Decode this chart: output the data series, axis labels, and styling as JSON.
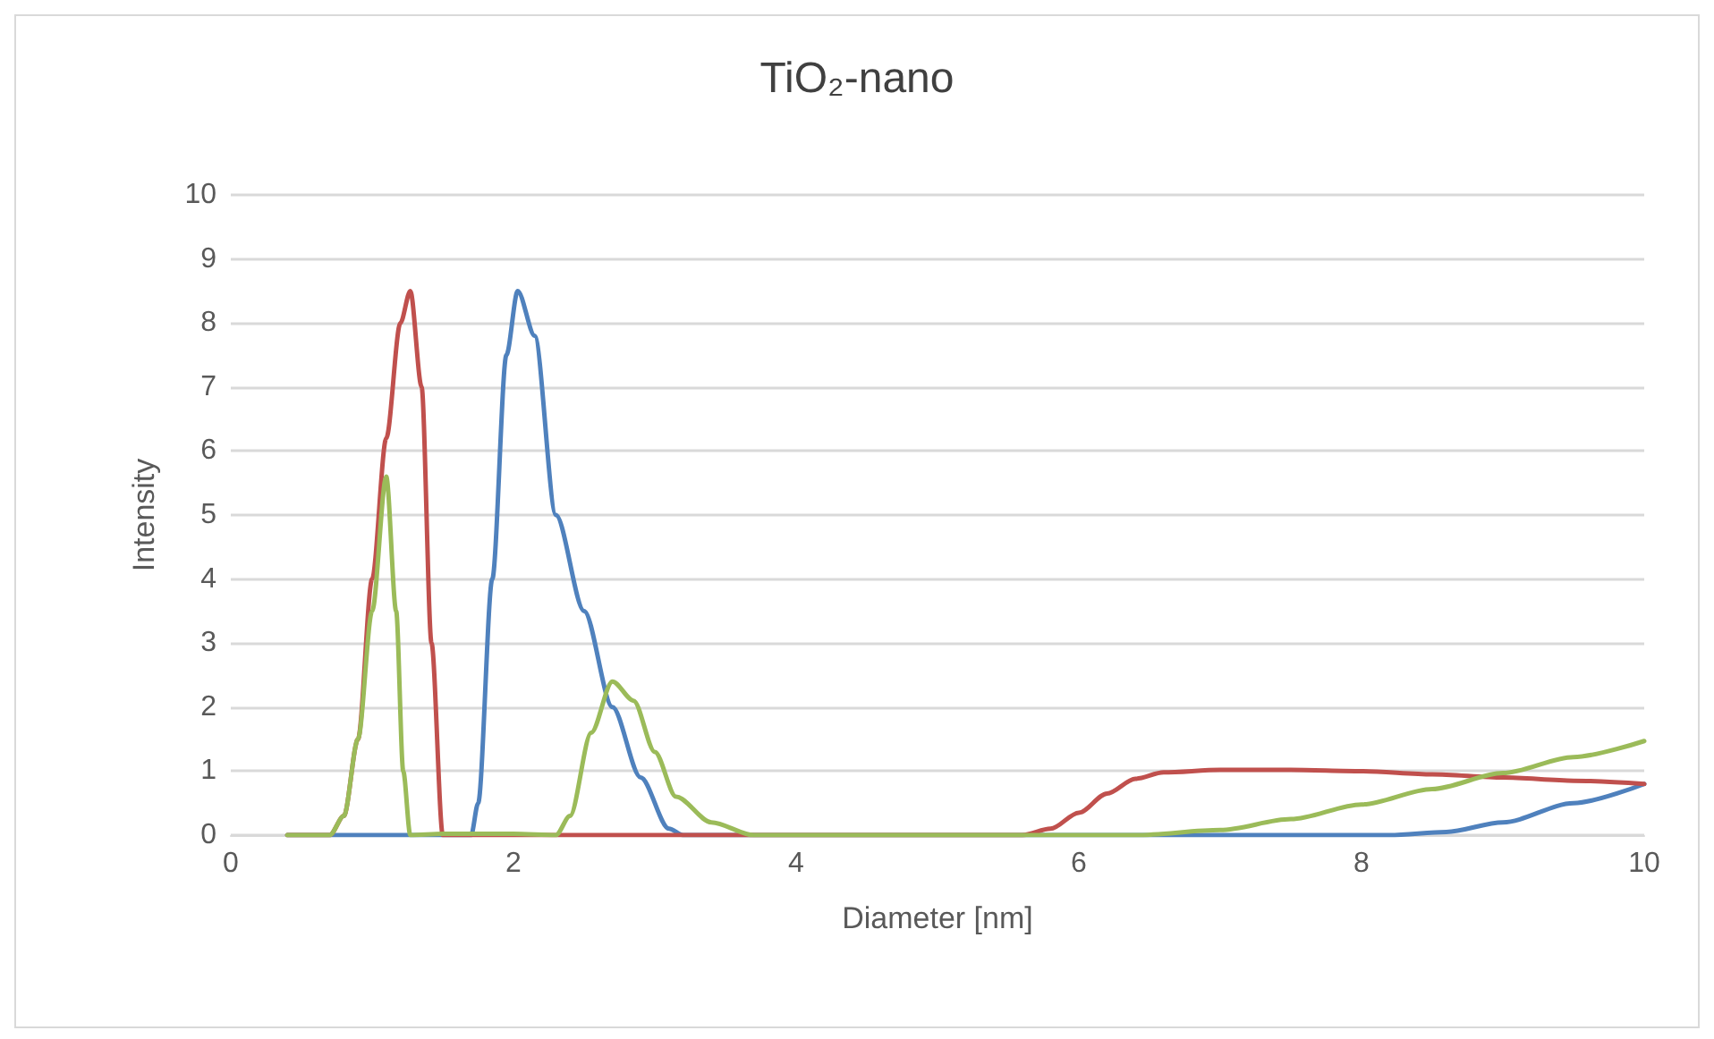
{
  "chart_data": {
    "type": "line",
    "title": "TiO₂-nano",
    "xlabel": "Diameter [nm]",
    "ylabel": "Intensity",
    "xlim": [
      0,
      10
    ],
    "xticks": [
      0,
      2,
      4,
      6,
      8,
      10
    ],
    "ylim": [
      0,
      10
    ],
    "yticks": [
      0,
      1,
      2,
      3,
      4,
      5,
      6,
      7,
      8,
      9,
      10
    ],
    "grid": "y",
    "marker": "none",
    "line_style": "solid",
    "series": [
      {
        "color": "#4f81bd",
        "x": [
          0.4,
          1.0,
          1.7,
          1.75,
          1.85,
          1.95,
          2.03,
          2.15,
          2.3,
          2.5,
          2.7,
          2.9,
          3.1,
          3.2,
          5.0,
          7.0,
          8.2,
          8.6,
          9.0,
          9.5,
          10.0
        ],
        "values": [
          0,
          0,
          0,
          0.5,
          4,
          7.5,
          8.5,
          7.8,
          5,
          3.5,
          2,
          0.9,
          0.1,
          0,
          0,
          0,
          0,
          0.05,
          0.2,
          0.5,
          0.8
        ]
      },
      {
        "color": "#c0504d",
        "x": [
          0.4,
          0.7,
          0.8,
          0.9,
          1.0,
          1.1,
          1.2,
          1.27,
          1.35,
          1.42,
          1.5,
          3.0,
          5.6,
          5.8,
          6.0,
          6.2,
          6.4,
          6.6,
          7.0,
          7.5,
          8.0,
          8.5,
          9.0,
          9.5,
          10.0
        ],
        "values": [
          0,
          0,
          0.3,
          1.5,
          4,
          6.2,
          8,
          8.5,
          7,
          3,
          0,
          0,
          0,
          0.1,
          0.35,
          0.65,
          0.88,
          0.98,
          1.02,
          1.02,
          1.0,
          0.95,
          0.9,
          0.85,
          0.8
        ]
      },
      {
        "color": "#9bbb59",
        "x": [
          0.4,
          0.7,
          0.8,
          0.9,
          1.0,
          1.1,
          1.17,
          1.22,
          1.27,
          1.5,
          2.0,
          2.3,
          2.4,
          2.55,
          2.7,
          2.85,
          3.0,
          3.15,
          3.4,
          3.7,
          5.0,
          6.4,
          7.0,
          7.5,
          8.0,
          8.5,
          9.0,
          9.5,
          10.0
        ],
        "values": [
          0,
          0,
          0.3,
          1.5,
          3.5,
          5.6,
          3.5,
          1,
          0,
          0.02,
          0.02,
          0,
          0.3,
          1.6,
          2.4,
          2.1,
          1.3,
          0.6,
          0.2,
          0,
          0,
          0,
          0.08,
          0.25,
          0.48,
          0.72,
          0.97,
          1.22,
          1.47
        ]
      }
    ]
  }
}
